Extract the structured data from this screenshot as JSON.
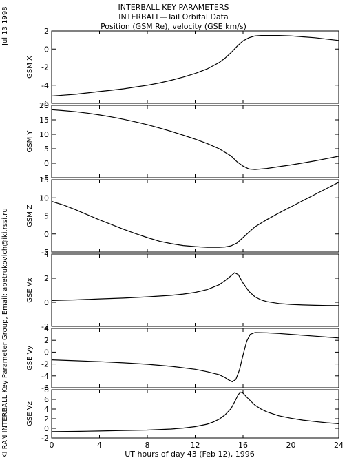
{
  "header": {
    "title1": "INTERBALL KEY PARAMETERS",
    "title2": "INTERBALL—Tail Orbital Data",
    "title3": "Position (GSM Re), velocity (GSE km/s)"
  },
  "side": {
    "date": "Jul 13 1998",
    "credit": "IKI RAN INTERBALL Key Parameter Group, Email: apetrukovich@iki.rssi.ru"
  },
  "chart_data": [
    {
      "type": "line",
      "ylabel": "GSM X",
      "ylim": [
        -6,
        2
      ],
      "yticks": [
        -6,
        -4,
        -2,
        0,
        2
      ],
      "x": [
        0,
        1,
        2,
        3,
        4,
        5,
        6,
        7,
        8,
        9,
        10,
        11,
        12,
        13,
        14,
        14.5,
        15,
        15.5,
        16,
        16.5,
        17,
        17.5,
        18,
        19,
        20,
        21,
        22,
        23,
        24
      ],
      "y": [
        -5.2,
        -5.1,
        -5.0,
        -4.85,
        -4.7,
        -4.55,
        -4.4,
        -4.2,
        -4.0,
        -3.75,
        -3.45,
        -3.1,
        -2.7,
        -2.2,
        -1.5,
        -1.0,
        -0.4,
        0.3,
        0.9,
        1.25,
        1.45,
        1.5,
        1.5,
        1.5,
        1.45,
        1.35,
        1.25,
        1.1,
        0.95
      ]
    },
    {
      "type": "line",
      "ylabel": "GSM Y",
      "ylim": [
        -5,
        20
      ],
      "yticks": [
        -5,
        0,
        5,
        10,
        15,
        20
      ],
      "x": [
        0,
        1,
        2,
        3,
        4,
        5,
        6,
        7,
        8,
        9,
        10,
        11,
        12,
        13,
        14,
        15,
        15.5,
        16,
        16.5,
        17,
        18,
        19,
        20,
        21,
        22,
        23,
        24
      ],
      "y": [
        18.5,
        18.2,
        17.8,
        17.3,
        16.7,
        16.0,
        15.2,
        14.3,
        13.3,
        12.2,
        11.0,
        9.7,
        8.3,
        6.8,
        5.0,
        2.5,
        0.5,
        -1.0,
        -2.0,
        -2.2,
        -1.8,
        -1.2,
        -0.6,
        0.1,
        0.8,
        1.6,
        2.4
      ]
    },
    {
      "type": "line",
      "ylabel": "GSM Z",
      "ylim": [
        -5,
        15
      ],
      "yticks": [
        -5,
        0,
        5,
        10,
        15
      ],
      "x": [
        0,
        1,
        2,
        3,
        4,
        5,
        6,
        7,
        8,
        9,
        10,
        11,
        12,
        13,
        14,
        14.5,
        15,
        15.5,
        16,
        16.5,
        17,
        18,
        19,
        20,
        21,
        22,
        23,
        24
      ],
      "y": [
        9.0,
        8.0,
        6.7,
        5.3,
        3.9,
        2.6,
        1.3,
        0.1,
        -1.0,
        -2.0,
        -2.7,
        -3.2,
        -3.5,
        -3.7,
        -3.7,
        -3.6,
        -3.3,
        -2.5,
        -1.0,
        0.5,
        2.0,
        4.0,
        5.8,
        7.5,
        9.2,
        10.9,
        12.6,
        14.3
      ]
    },
    {
      "type": "line",
      "ylabel": "GSE Vx",
      "ylim": [
        -2,
        4
      ],
      "yticks": [
        -2,
        0,
        2,
        4
      ],
      "x": [
        0,
        2,
        4,
        6,
        8,
        10,
        11,
        12,
        13,
        14,
        14.5,
        15,
        15.3,
        15.6,
        16,
        16.5,
        17,
        17.5,
        18,
        19,
        20,
        21,
        22,
        23,
        24
      ],
      "y": [
        0.15,
        0.2,
        0.28,
        0.35,
        0.45,
        0.58,
        0.68,
        0.82,
        1.05,
        1.45,
        1.8,
        2.2,
        2.45,
        2.3,
        1.6,
        0.9,
        0.45,
        0.2,
        0.05,
        -0.1,
        -0.18,
        -0.22,
        -0.25,
        -0.27,
        -0.28
      ]
    },
    {
      "type": "line",
      "ylabel": "GSE Vy",
      "ylim": [
        -6,
        4
      ],
      "yticks": [
        -6,
        -4,
        -2,
        0,
        2,
        4
      ],
      "x": [
        0,
        2,
        4,
        6,
        8,
        10,
        12,
        13,
        14,
        14.5,
        14.8,
        15.1,
        15.4,
        15.7,
        16,
        16.3,
        16.6,
        17,
        18,
        19,
        20,
        21,
        22,
        23,
        24
      ],
      "y": [
        -1.3,
        -1.45,
        -1.6,
        -1.8,
        -2.05,
        -2.4,
        -2.9,
        -3.3,
        -3.8,
        -4.3,
        -4.7,
        -5.0,
        -4.6,
        -3.0,
        -0.5,
        1.8,
        3.0,
        3.3,
        3.25,
        3.15,
        3.0,
        2.85,
        2.7,
        2.55,
        2.4
      ]
    },
    {
      "type": "line",
      "ylabel": "GSE Vz",
      "ylim": [
        -2,
        8
      ],
      "yticks": [
        -2,
        0,
        2,
        4,
        6,
        8
      ],
      "x": [
        0,
        2,
        4,
        6,
        8,
        10,
        11,
        12,
        13,
        13.5,
        14,
        14.5,
        15,
        15.3,
        15.6,
        15.8,
        16,
        16.3,
        16.7,
        17,
        17.5,
        18,
        19,
        20,
        21,
        22,
        23,
        24
      ],
      "y": [
        -0.7,
        -0.65,
        -0.55,
        -0.45,
        -0.35,
        -0.15,
        0.05,
        0.35,
        0.85,
        1.3,
        1.9,
        2.8,
        4.1,
        5.5,
        7.0,
        7.5,
        7.3,
        6.5,
        5.5,
        4.8,
        4.0,
        3.4,
        2.6,
        2.1,
        1.7,
        1.4,
        1.15,
        0.95
      ]
    }
  ],
  "x_axis": {
    "label": "UT hours of day  43 (Feb 12), 1996",
    "xlim": [
      0,
      24
    ],
    "ticks": [
      0,
      4,
      8,
      12,
      16,
      20,
      24
    ]
  }
}
